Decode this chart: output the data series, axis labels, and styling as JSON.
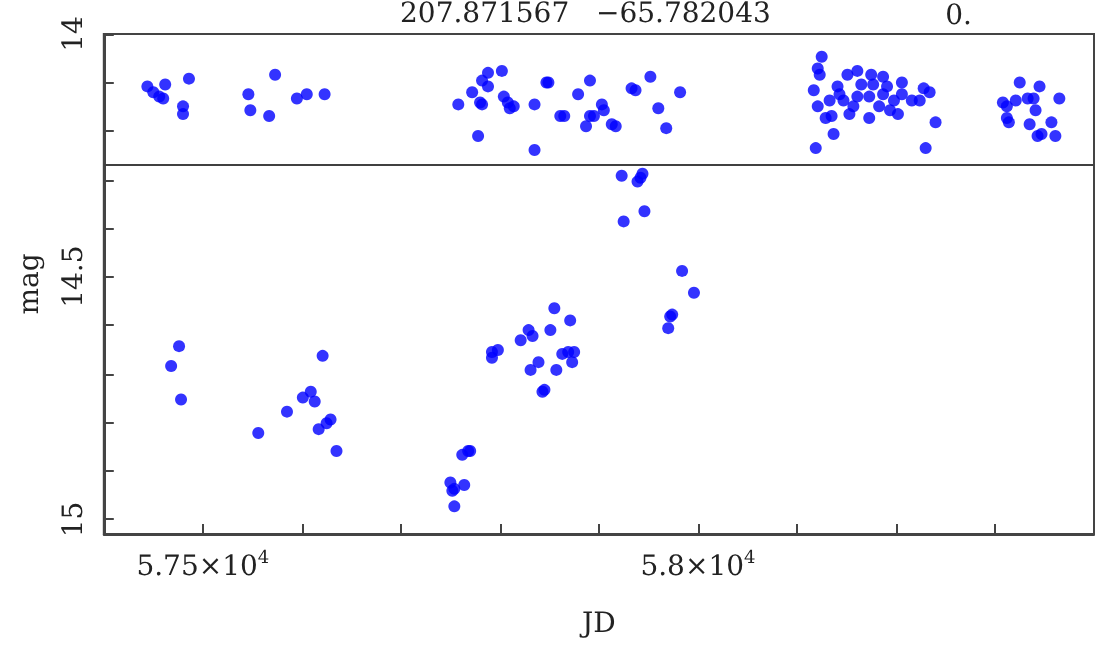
{
  "chart_data": {
    "type": "scatter",
    "title": "207.871567   −65.782043",
    "annotations": [
      "0."
    ],
    "xlabel": "JD",
    "ylabel": "mag",
    "marker": "circle",
    "grid": false,
    "xlim": [
      57400,
      58400
    ],
    "ylim": [
      15.03,
      14.0
    ],
    "xticks": [
      {
        "value": 57400,
        "label": null
      },
      {
        "value": 57500,
        "label": "5.75×10$^{4}$"
      },
      {
        "value": 57600,
        "label": null
      },
      {
        "value": 57700,
        "label": null
      },
      {
        "value": 57800,
        "label": null
      },
      {
        "value": 57900,
        "label": null
      },
      {
        "value": 58000,
        "label": "5.8×10$^{4}$"
      },
      {
        "value": 58100,
        "label": null
      },
      {
        "value": 58200,
        "label": null
      },
      {
        "value": 58300,
        "label": null
      }
    ],
    "yticks": [
      14,
      {
        "value": 14.1,
        "label": null
      },
      {
        "value": 14.2,
        "label": null
      },
      {
        "value": 14.3,
        "label": null
      },
      {
        "value": 14.4,
        "label": null
      },
      14.5,
      {
        "value": 14.6,
        "label": null
      },
      {
        "value": 14.7,
        "label": null
      },
      {
        "value": 14.8,
        "label": null
      },
      {
        "value": 14.9,
        "label": null
      },
      15
    ],
    "ref_lines": [
      {
        "axis": "y",
        "value": 14.27,
        "color": "#404040"
      }
    ],
    "series": [
      {
        "color": "#0000ff",
        "x": [
          57444,
          57450,
          57456,
          57462,
          57460,
          57480,
          57480,
          57486,
          57546,
          57548,
          57567,
          57573,
          57595,
          57605,
          57623,
          57758,
          57772,
          57780,
          57782,
          57782,
          57788,
          57788,
          57778,
          57802,
          57804,
          57808,
          57810,
          57814,
          57835,
          57835,
          57847,
          57849,
          57861,
          57865,
          57879,
          57891,
          57887,
          57891,
          57895,
          57903,
          57905,
          57913,
          57917,
          57933,
          57937,
          57952,
          57960,
          57968,
          57982,
          58125,
          58121,
          58123,
          58117,
          58121,
          58129,
          58119,
          58137,
          58135,
          58141,
          58151,
          58161,
          58175,
          58187,
          58165,
          58177,
          58191,
          58206,
          58133,
          58147,
          58161,
          58173,
          58187,
          58198,
          58153,
          58173,
          58183,
          58194,
          58202,
          58206,
          58216,
          58224,
          58228,
          58234,
          58240,
          58230,
          58143,
          58157,
          58308,
          58312,
          58312,
          58314,
          58321,
          58325,
          58333,
          58339,
          58345,
          58341,
          58335,
          58343,
          58347,
          58357,
          58361,
          58365,
          57923,
          57944,
          57942,
          57939,
          57946,
          57925,
          57984,
          57996,
          57974,
          57972,
          57970,
          57855,
          57851,
          57871,
          57863,
          57869,
          57875,
          57873,
          57857,
          57845,
          57468,
          57476,
          57478,
          57556,
          57585,
          57601,
          57609,
          57613,
          57621,
          57617,
          57625,
          57629,
          57635,
          57750,
          57752,
          57754,
          57764,
          57754,
          57762,
          57768,
          57770,
          57792,
          57792,
          57798,
          57821,
          57829,
          57833,
          57831,
          57839,
          57843
        ],
        "values": [
          14.108,
          14.12,
          14.129,
          14.104,
          14.133,
          14.149,
          14.165,
          14.092,
          14.124,
          14.157,
          14.169,
          14.084,
          14.133,
          14.124,
          14.124,
          14.145,
          14.12,
          14.141,
          14.145,
          14.096,
          14.08,
          14.108,
          14.21,
          14.076,
          14.129,
          14.141,
          14.153,
          14.149,
          14.145,
          14.239,
          14.1,
          14.1,
          14.169,
          14.169,
          14.124,
          14.096,
          14.19,
          14.169,
          14.169,
          14.145,
          14.157,
          14.186,
          14.19,
          14.112,
          14.116,
          14.088,
          14.153,
          14.194,
          14.12,
          14.047,
          14.071,
          14.084,
          14.116,
          14.149,
          14.173,
          14.235,
          14.206,
          14.169,
          14.108,
          14.084,
          14.076,
          14.084,
          14.088,
          14.104,
          14.104,
          14.108,
          14.1,
          14.137,
          14.137,
          14.129,
          14.129,
          14.124,
          14.137,
          14.165,
          14.173,
          14.149,
          14.157,
          14.165,
          14.124,
          14.137,
          14.137,
          14.112,
          14.12,
          14.182,
          14.235,
          14.124,
          14.149,
          14.141,
          14.149,
          14.173,
          14.182,
          14.137,
          14.1,
          14.133,
          14.133,
          14.108,
          14.157,
          14.186,
          14.21,
          14.206,
          14.182,
          14.21,
          14.133,
          14.292,
          14.288,
          14.296,
          14.304,
          14.365,
          14.386,
          14.488,
          14.533,
          14.578,
          14.582,
          14.606,
          14.565,
          14.61,
          14.59,
          14.659,
          14.655,
          14.655,
          14.676,
          14.692,
          14.733,
          14.684,
          14.643,
          14.753,
          14.822,
          14.778,
          14.749,
          14.737,
          14.757,
          14.663,
          14.814,
          14.802,
          14.794,
          14.859,
          14.924,
          14.941,
          14.937,
          14.929,
          14.973,
          14.867,
          14.859,
          14.859,
          14.667,
          14.655,
          14.651,
          14.631,
          14.61,
          14.622,
          14.692,
          14.676,
          14.737
        ]
      }
    ]
  }
}
